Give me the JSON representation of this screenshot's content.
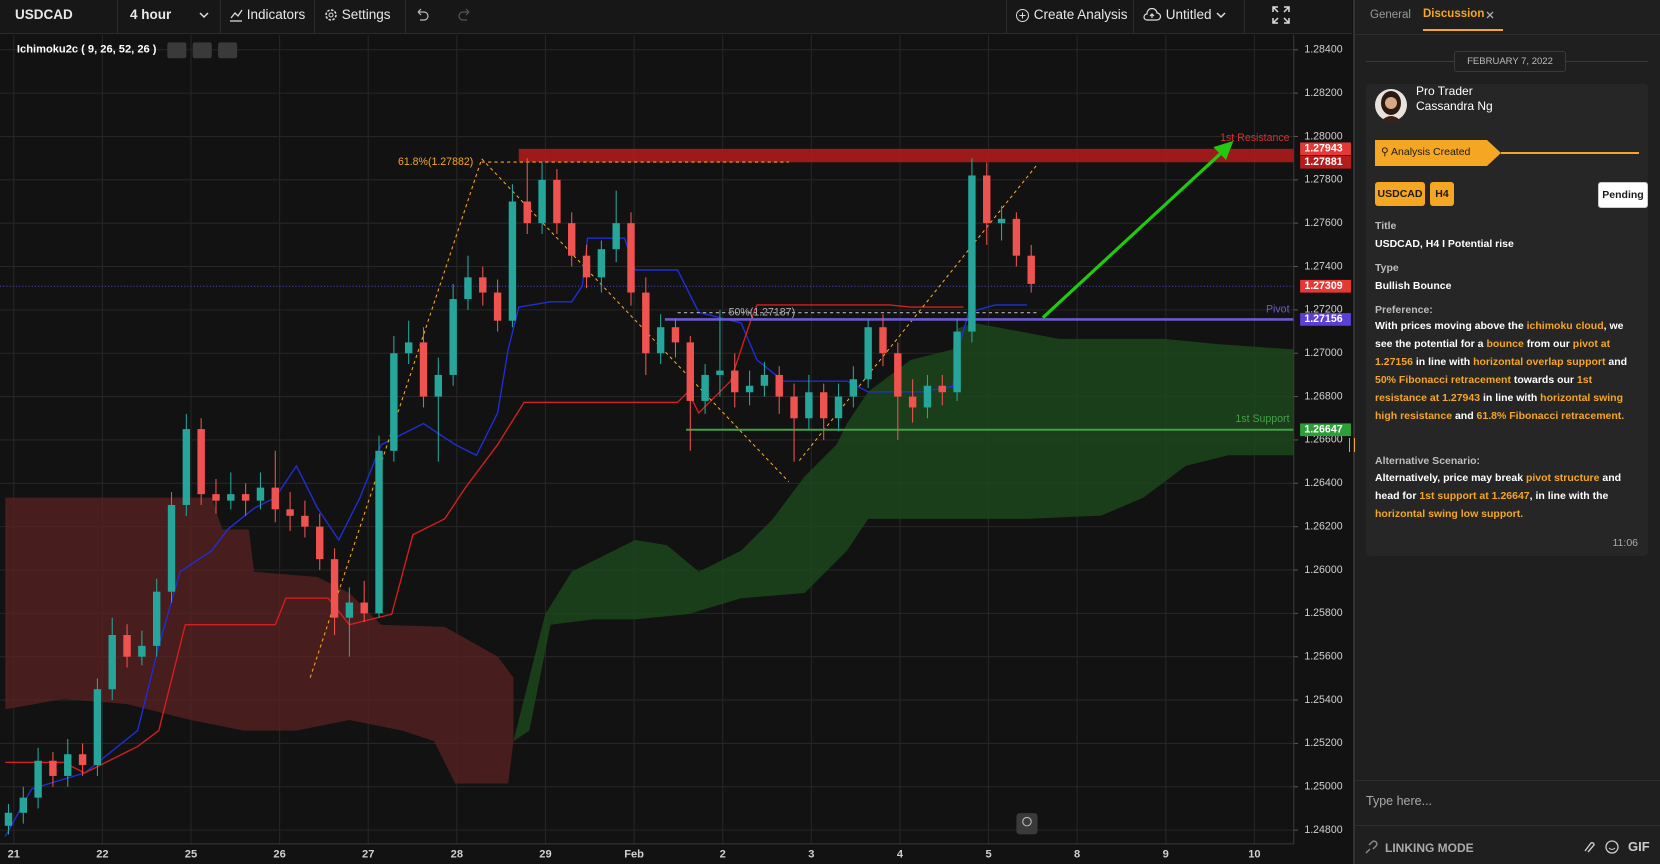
{
  "toolbar": {
    "symbol": "USDCAD",
    "interval": "4 hour",
    "indicators": "Indicators",
    "settings": "Settings",
    "create": "Create Analysis",
    "workspace": "Untitled"
  },
  "chart_data": {
    "type": "candlestick",
    "indicator_label": "Ichimoku2c ( 9, 26, 52, 26 )",
    "up_color": "#26a69a",
    "down_color": "#ef5350",
    "candles": [
      [
        1.2482,
        1.2492,
        1.2478,
        1.2488
      ],
      [
        1.2488,
        1.25,
        1.2483,
        1.2495
      ],
      [
        1.2495,
        1.2518,
        1.249,
        1.2512
      ],
      [
        1.2512,
        1.2516,
        1.25,
        1.2505
      ],
      [
        1.2505,
        1.2522,
        1.25,
        1.2515
      ],
      [
        1.2515,
        1.252,
        1.2505,
        1.251
      ],
      [
        1.251,
        1.255,
        1.2505,
        1.2545
      ],
      [
        1.2545,
        1.2578,
        1.254,
        1.257
      ],
      [
        1.257,
        1.2575,
        1.2555,
        1.256
      ],
      [
        1.256,
        1.2572,
        1.2556,
        1.2565
      ],
      [
        1.2565,
        1.2596,
        1.256,
        1.259
      ],
      [
        1.259,
        1.2636,
        1.2585,
        1.263
      ],
      [
        1.263,
        1.2672,
        1.2625,
        1.2665
      ],
      [
        1.2665,
        1.267,
        1.263,
        1.2635
      ],
      [
        1.2635,
        1.2642,
        1.2626,
        1.2632
      ],
      [
        1.2632,
        1.2645,
        1.2628,
        1.2635
      ],
      [
        1.2635,
        1.264,
        1.2625,
        1.2632
      ],
      [
        1.2632,
        1.2645,
        1.2628,
        1.2638
      ],
      [
        1.2638,
        1.2655,
        1.2622,
        1.2628
      ],
      [
        1.2628,
        1.2636,
        1.2618,
        1.2625
      ],
      [
        1.2625,
        1.2632,
        1.2615,
        1.262
      ],
      [
        1.262,
        1.2626,
        1.26,
        1.2605
      ],
      [
        1.2605,
        1.261,
        1.257,
        1.2578
      ],
      [
        1.2578,
        1.2592,
        1.256,
        1.2585
      ],
      [
        1.2585,
        1.2595,
        1.2576,
        1.258
      ],
      [
        1.258,
        1.2662,
        1.2578,
        1.2655
      ],
      [
        1.2655,
        1.2708,
        1.265,
        1.27
      ],
      [
        1.27,
        1.2715,
        1.2695,
        1.2705
      ],
      [
        1.2705,
        1.2712,
        1.2675,
        1.268
      ],
      [
        1.268,
        1.2698,
        1.265,
        1.269
      ],
      [
        1.269,
        1.2732,
        1.2685,
        1.2725
      ],
      [
        1.2725,
        1.2745,
        1.272,
        1.2735
      ],
      [
        1.2735,
        1.274,
        1.2722,
        1.2728
      ],
      [
        1.2728,
        1.2734,
        1.271,
        1.2715
      ],
      [
        1.2715,
        1.2778,
        1.2712,
        1.277
      ],
      [
        1.277,
        1.279,
        1.2755,
        1.276
      ],
      [
        1.276,
        1.2788,
        1.2755,
        1.278
      ],
      [
        1.278,
        1.2785,
        1.2755,
        1.276
      ],
      [
        1.276,
        1.2765,
        1.274,
        1.2745
      ],
      [
        1.2745,
        1.275,
        1.273,
        1.2735
      ],
      [
        1.2735,
        1.2752,
        1.2728,
        1.2748
      ],
      [
        1.2748,
        1.2775,
        1.2742,
        1.276
      ],
      [
        1.276,
        1.2765,
        1.2722,
        1.2728
      ],
      [
        1.2728,
        1.2735,
        1.269,
        1.27
      ],
      [
        1.27,
        1.2718,
        1.2695,
        1.2712
      ],
      [
        1.2712,
        1.2716,
        1.2698,
        1.2705
      ],
      [
        1.2705,
        1.2708,
        1.2655,
        1.2678
      ],
      [
        1.2678,
        1.2695,
        1.2672,
        1.269
      ],
      [
        1.269,
        1.272,
        1.268,
        1.2692
      ],
      [
        1.2692,
        1.27,
        1.2675,
        1.2682
      ],
      [
        1.2682,
        1.2692,
        1.2676,
        1.2685
      ],
      [
        1.2685,
        1.2696,
        1.268,
        1.269
      ],
      [
        1.269,
        1.2694,
        1.2672,
        1.268
      ],
      [
        1.268,
        1.2686,
        1.265,
        1.267
      ],
      [
        1.267,
        1.269,
        1.2665,
        1.2682
      ],
      [
        1.2682,
        1.2686,
        1.266,
        1.267
      ],
      [
        1.267,
        1.2686,
        1.2664,
        1.268
      ],
      [
        1.268,
        1.2694,
        1.2675,
        1.2688
      ],
      [
        1.2688,
        1.2716,
        1.2684,
        1.2712
      ],
      [
        1.2712,
        1.2718,
        1.2694,
        1.27
      ],
      [
        1.27,
        1.2705,
        1.266,
        1.268
      ],
      [
        1.268,
        1.2688,
        1.2668,
        1.2675
      ],
      [
        1.2675,
        1.269,
        1.267,
        1.2685
      ],
      [
        1.2685,
        1.269,
        1.2676,
        1.2682
      ],
      [
        1.2682,
        1.2716,
        1.2678,
        1.271
      ],
      [
        1.271,
        1.279,
        1.2705,
        1.2782
      ],
      [
        1.2782,
        1.2788,
        1.275,
        1.276
      ],
      [
        1.276,
        1.2768,
        1.2752,
        1.2762
      ],
      [
        1.2762,
        1.2765,
        1.274,
        1.2745
      ],
      [
        1.2745,
        1.275,
        1.2728,
        1.2732
      ]
    ],
    "ylim": [
      1.248,
      1.284
    ],
    "yticks": [
      {
        "value": 1.284,
        "label": "1.28400"
      },
      {
        "value": 1.282,
        "label": "1.28200"
      },
      {
        "value": 1.28,
        "label": "1.28000"
      },
      {
        "value": 1.278,
        "label": "1.27800"
      },
      {
        "value": 1.276,
        "label": "1.27600"
      },
      {
        "value": 1.274,
        "label": "1.27400"
      },
      {
        "value": 1.272,
        "label": "1.27200"
      },
      {
        "value": 1.27,
        "label": "1.27000"
      },
      {
        "value": 1.268,
        "label": "1.26800"
      },
      {
        "value": 1.266,
        "label": "1.26600"
      },
      {
        "value": 1.264,
        "label": "1.26400"
      },
      {
        "value": 1.262,
        "label": "1.26200"
      },
      {
        "value": 1.26,
        "label": "1.26000"
      },
      {
        "value": 1.258,
        "label": "1.25800"
      },
      {
        "value": 1.256,
        "label": "1.25600"
      },
      {
        "value": 1.254,
        "label": "1.25400"
      },
      {
        "value": 1.252,
        "label": "1.25200"
      },
      {
        "value": 1.25,
        "label": "1.25000"
      },
      {
        "value": 1.248,
        "label": "1.24800"
      }
    ],
    "x_labels": [
      "21",
      "22",
      "25",
      "26",
      "27",
      "28",
      "29",
      "Feb",
      "2",
      "3",
      "4",
      "5",
      "8",
      "9",
      "10"
    ],
    "grid": true,
    "price_tags": [
      {
        "value": 1.27943,
        "color": "#e53935"
      },
      {
        "value": 1.27881,
        "color": "#b71c1c"
      },
      {
        "value": 1.27309,
        "color": "#e53935"
      },
      {
        "value": 1.27156,
        "color": "#5b3fd6"
      },
      {
        "value": 1.26647,
        "color": "#2e9e3a"
      }
    ],
    "annotations": [
      {
        "text": "1st Resistance",
        "value": 1.27943,
        "color": "#d32f2f"
      },
      {
        "text": "Pivot",
        "value": 1.27156,
        "color": "#6a5acd"
      },
      {
        "text": "1st Support",
        "value": 1.26647,
        "color": "#43a047"
      },
      {
        "text": "61.8%(1.27882)",
        "value": 1.27882,
        "color": "#f5a623"
      },
      {
        "text": "50%(1.27187)",
        "value": 1.27187,
        "color": "#b0b0b0"
      }
    ]
  },
  "sidebar": {
    "tabs": [
      "General",
      "Discussion"
    ],
    "date": "FEBRUARY 7, 2022",
    "author": {
      "role": "Pro Trader",
      "name": "Cassandra Ng"
    },
    "status": "Analysis Created",
    "tags": [
      "USDCAD",
      "H4"
    ],
    "badge": "Pending",
    "fields": [
      {
        "label": "Title",
        "value": "USDCAD, H4 I Potential rise"
      },
      {
        "label": "Type",
        "value": "Bullish Bounce"
      }
    ],
    "preference": {
      "label": "Preference:",
      "segments": [
        {
          "text": "With prices moving above the ",
          "highlight": false
        },
        {
          "text": "ichimoku cloud",
          "highlight": true
        },
        {
          "text": ", we see the potential for a ",
          "highlight": false
        },
        {
          "text": "bounce",
          "highlight": true
        },
        {
          "text": " from our ",
          "highlight": false
        },
        {
          "text": "pivot at 1.27156",
          "highlight": true
        },
        {
          "text": " in line with ",
          "highlight": false
        },
        {
          "text": "horizontal overlap support",
          "highlight": true
        },
        {
          "text": " and ",
          "highlight": false
        },
        {
          "text": "50% Fibonacci retracement",
          "highlight": true
        },
        {
          "text": "  towards our ",
          "highlight": false
        },
        {
          "text": "1st resistance at 1.27943",
          "highlight": true
        },
        {
          "text": " in line with ",
          "highlight": false
        },
        {
          "text": "horizontal swing high resistance",
          "highlight": true
        },
        {
          "text": " and ",
          "highlight": false
        },
        {
          "text": "61.8% Fibonacci retracement.",
          "highlight": true
        }
      ]
    },
    "alternative": {
      "label": "Alternative Scenario:",
      "segments": [
        {
          "text": "Alternatively, price may break ",
          "highlight": false
        },
        {
          "text": "pivot structure",
          "highlight": true
        },
        {
          "text": " and head for ",
          "highlight": false
        },
        {
          "text": "1st support at 1.26647",
          "highlight": true
        },
        {
          "text": ", in line with the ",
          "highlight": false
        },
        {
          "text": "horizontal swing low support.",
          "highlight": true
        }
      ]
    },
    "time": "11:06",
    "input_placeholder": "Type here...",
    "linking": "LINKING MODE",
    "gif": "GIF"
  }
}
